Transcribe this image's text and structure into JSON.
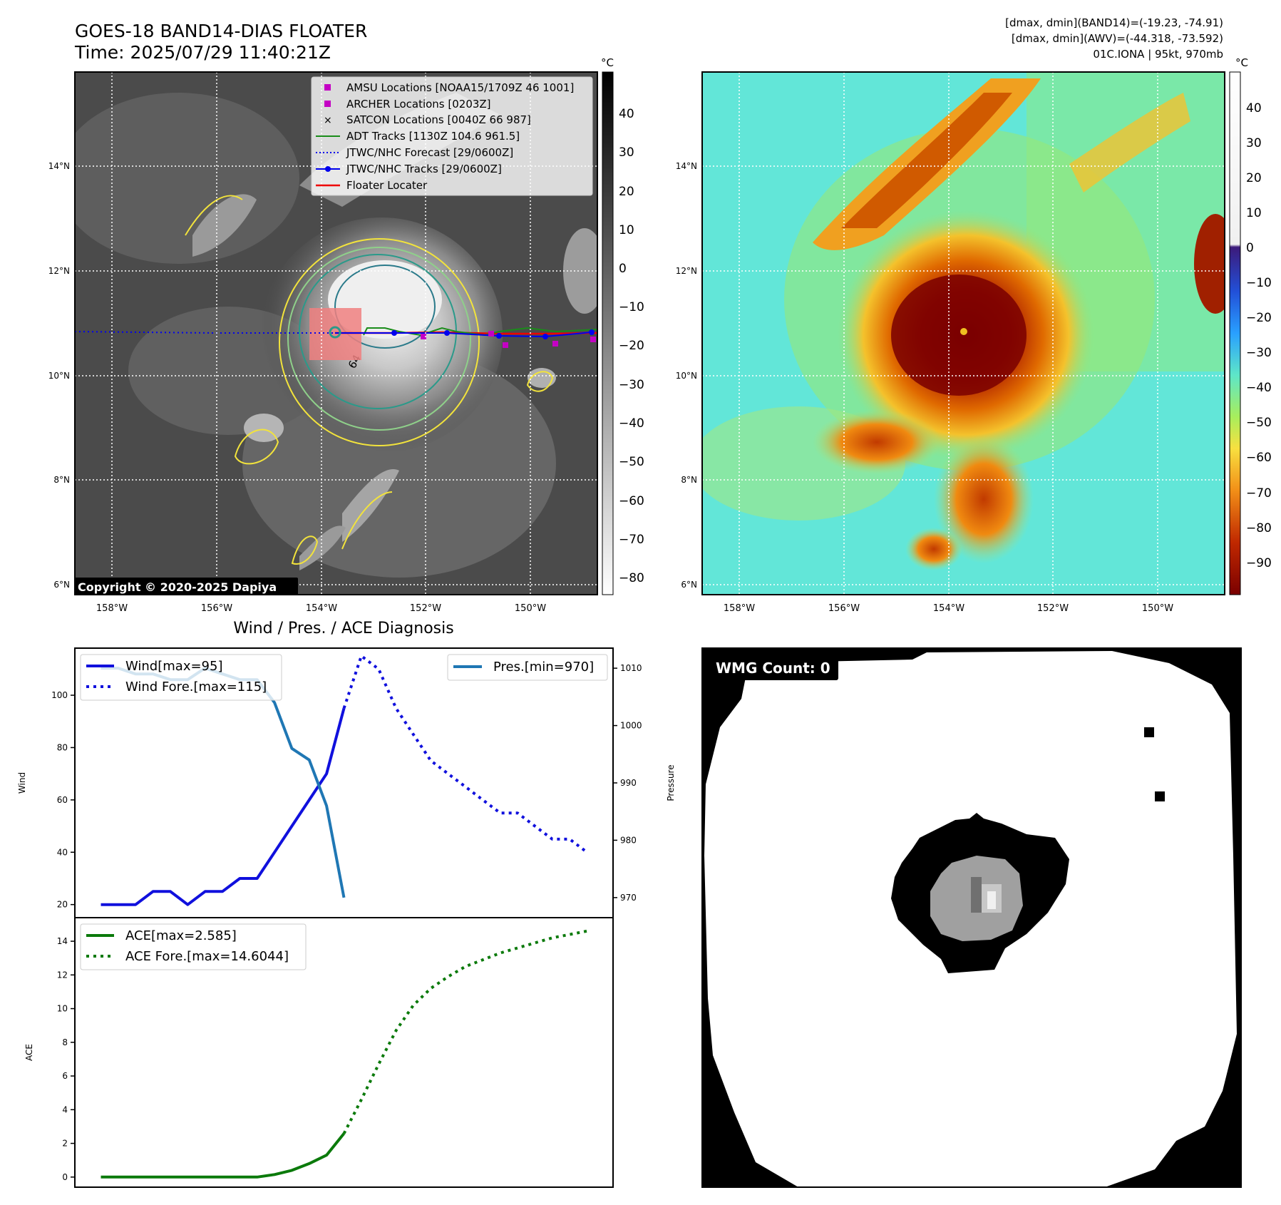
{
  "header": {
    "title_line1": "GOES-18 BAND14-DIAS FLOATER",
    "title_line2": "Time: 2025/07/29 11:40:21Z",
    "info_line1": "[dmax, dmin](BAND14)=(-19.23, -74.91)",
    "info_line2": "[dmax, dmin](AWV)=(-44.318, -73.592)",
    "info_line3": "01C.IONA | 95kt, 970mb"
  },
  "map_axes": {
    "lon_ticks": [
      "158°W",
      "156°W",
      "154°W",
      "152°W",
      "150°W"
    ],
    "lat_ticks": [
      "14°N",
      "12°N",
      "10°N",
      "8°N",
      "6°N"
    ]
  },
  "ir_panel": {
    "copyright": "Copyright © 2020-2025 Dapiya",
    "colorbar_unit": "°C",
    "colorbar_ticks": [
      "40",
      "30",
      "20",
      "10",
      "0",
      "−10",
      "−20",
      "−30",
      "−40",
      "−50",
      "−60",
      "−70",
      "−80"
    ],
    "legend": [
      {
        "label": "AMSU Locations [NOAA15/1709Z 46 1001]",
        "marker": "square",
        "color": "#c400c4"
      },
      {
        "label": "ARCHER Locations [0203Z]",
        "marker": "square",
        "color": "#c400c4"
      },
      {
        "label": "SATCON Locations [0040Z 66 987]",
        "marker": "x",
        "color": "#1fb5b5"
      },
      {
        "label": "ADT Tracks [1130Z 104.6 961.5]",
        "marker": "line",
        "color": "#1a8c1a"
      },
      {
        "label": "JTWC/NHC Forecast [29/0600Z]",
        "marker": "dotted",
        "color": "#0000ee"
      },
      {
        "label": "JTWC/NHC Tracks [29/0600Z]",
        "marker": "line-dot",
        "color": "#0000ee"
      },
      {
        "label": "Floater Locater",
        "marker": "line",
        "color": "#ee0000"
      }
    ],
    "contour_label": "64"
  },
  "awv_panel": {
    "colorbar_unit": "°C",
    "colorbar_ticks": [
      "40",
      "30",
      "20",
      "10",
      "0",
      "−10",
      "−20",
      "−30",
      "−40",
      "−50",
      "−60",
      "−70",
      "−80",
      "−90"
    ]
  },
  "wmg_panel": {
    "label": "WMG Count: 0"
  },
  "chart_data": [
    {
      "type": "line",
      "title": "Wind / Pres. / ACE Diagnosis",
      "ylabel": "Wind",
      "ylabel_right": "Pressure",
      "ylim": [
        15,
        118
      ],
      "ylim_right": [
        966.5,
        1013.5
      ],
      "yticks": [
        20,
        40,
        60,
        80,
        100
      ],
      "yticks_right": [
        970,
        980,
        990,
        1000,
        1010
      ],
      "series": [
        {
          "name": "Wind[max=95]",
          "axis": "left",
          "style": "solid",
          "color": "#1010dd",
          "x": [
            0,
            1,
            2,
            3,
            4,
            5,
            6,
            7,
            8,
            9,
            10,
            11,
            12,
            13,
            14
          ],
          "values": [
            20,
            20,
            20,
            25,
            25,
            20,
            25,
            25,
            30,
            30,
            40,
            50,
            60,
            70,
            95
          ]
        },
        {
          "name": "Wind Fore.[max=115]",
          "axis": "left",
          "style": "dotted",
          "color": "#1010dd",
          "x": [
            14,
            15,
            16,
            17,
            18,
            19,
            20,
            21,
            22,
            23,
            24,
            25,
            26,
            27,
            28
          ],
          "values": [
            95,
            115,
            110,
            95,
            85,
            75,
            70,
            65,
            60,
            55,
            55,
            50,
            45,
            45,
            40
          ]
        },
        {
          "name": "Pres.[min=970]",
          "axis": "right",
          "style": "solid",
          "color": "#1f77b4",
          "x": [
            0,
            1,
            2,
            3,
            4,
            5,
            6,
            7,
            8,
            9,
            10,
            11,
            12,
            13,
            14
          ],
          "values": [
            1010,
            1010,
            1009,
            1009,
            1008,
            1008,
            1010,
            1009,
            1008,
            1008,
            1004,
            996,
            994,
            986,
            970
          ]
        }
      ]
    },
    {
      "type": "line",
      "ylabel": "ACE",
      "ylim": [
        -0.6,
        15.4
      ],
      "yticks": [
        0,
        2,
        4,
        6,
        8,
        10,
        12,
        14
      ],
      "series": [
        {
          "name": "ACE[max=2.585]",
          "style": "solid",
          "color": "#0b7a0b",
          "x": [
            0,
            1,
            2,
            3,
            4,
            5,
            6,
            7,
            8,
            9,
            10,
            11,
            12,
            13,
            14
          ],
          "values": [
            0,
            0,
            0,
            0,
            0,
            0,
            0,
            0,
            0,
            0,
            0.15,
            0.4,
            0.8,
            1.3,
            2.585
          ]
        },
        {
          "name": "ACE Fore.[max=14.6044]",
          "style": "dotted",
          "color": "#0b7a0b",
          "x": [
            14,
            15,
            16,
            17,
            18,
            19,
            20,
            21,
            22,
            23,
            24,
            25,
            26,
            27,
            28
          ],
          "values": [
            2.585,
            4.6,
            6.7,
            8.7,
            10.2,
            11.2,
            11.9,
            12.5,
            12.9,
            13.3,
            13.6,
            13.9,
            14.2,
            14.4,
            14.6044
          ]
        }
      ]
    }
  ]
}
